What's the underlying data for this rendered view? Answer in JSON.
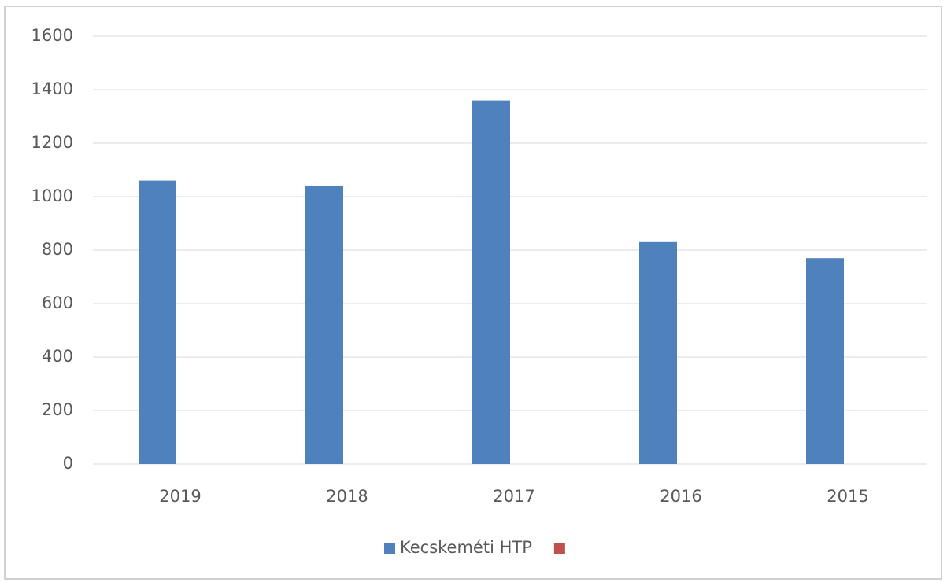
{
  "chart_data": {
    "type": "bar",
    "categories": [
      "2019",
      "2018",
      "2017",
      "2016",
      "2015"
    ],
    "series": [
      {
        "name": "Kecskeméti HTP",
        "color": "#4f81bd",
        "values": [
          1060,
          1040,
          1360,
          830,
          770
        ]
      },
      {
        "color": "#c0504d",
        "values": [
          null,
          null,
          null,
          null,
          null
        ]
      }
    ],
    "ylim": [
      0,
      1600
    ],
    "yticks": [
      0,
      200,
      400,
      600,
      800,
      1000,
      1200,
      1400,
      1600
    ],
    "grid": true,
    "legend": "bottom"
  }
}
